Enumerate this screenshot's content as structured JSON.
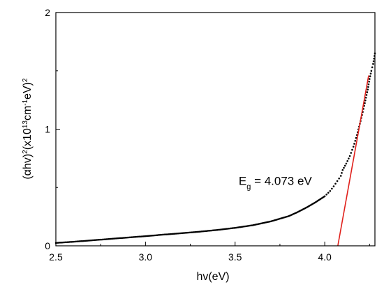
{
  "chart_data": {
    "type": "scatter",
    "title": "",
    "xlabel": "hv(eV)",
    "ylabel": {
      "parts": [
        "(",
        "α",
        "hv)",
        "2",
        "(x10",
        "13",
        "cm",
        "-1",
        "eV)",
        "2"
      ]
    },
    "xlim": [
      2.5,
      4.28
    ],
    "ylim": [
      0,
      2
    ],
    "xticks": [
      "2.5",
      "3.0",
      "3.5",
      "4.0"
    ],
    "xtick_values": [
      2.5,
      3.0,
      3.5,
      4.0
    ],
    "yticks": [
      "0",
      "1",
      "2"
    ],
    "ytick_values": [
      0,
      1,
      2
    ],
    "grid": false,
    "colors": {
      "data": "#000000",
      "fit": "#e0201b",
      "axis": "#000000"
    },
    "series": [
      {
        "marker": "dot",
        "points": [
          [
            2.5,
            0.025
          ],
          [
            2.6,
            0.035
          ],
          [
            2.7,
            0.047
          ],
          [
            2.8,
            0.059
          ],
          [
            2.9,
            0.071
          ],
          [
            3.0,
            0.083
          ],
          [
            3.1,
            0.096
          ],
          [
            3.2,
            0.108
          ],
          [
            3.3,
            0.121
          ],
          [
            3.4,
            0.136
          ],
          [
            3.5,
            0.154
          ],
          [
            3.6,
            0.177
          ],
          [
            3.7,
            0.21
          ],
          [
            3.8,
            0.255
          ],
          [
            3.85,
            0.29
          ],
          [
            3.9,
            0.33
          ],
          [
            3.95,
            0.375
          ],
          [
            4.0,
            0.425
          ],
          [
            4.03,
            0.47
          ],
          [
            4.05,
            0.51
          ],
          [
            4.07,
            0.555
          ],
          [
            4.09,
            0.6
          ],
          [
            4.1,
            0.65
          ],
          [
            4.12,
            0.705
          ],
          [
            4.14,
            0.77
          ],
          [
            4.16,
            0.85
          ],
          [
            4.18,
            0.95
          ],
          [
            4.2,
            1.07
          ],
          [
            4.22,
            1.2
          ],
          [
            4.24,
            1.34
          ],
          [
            4.25,
            1.43
          ],
          [
            4.26,
            1.5
          ],
          [
            4.27,
            1.56
          ],
          [
            4.28,
            1.65
          ]
        ]
      }
    ],
    "fit_line": {
      "x": [
        4.073,
        4.245
      ],
      "y": [
        0,
        1.46
      ]
    },
    "annotation": {
      "text_main": "E",
      "text_sub": "g",
      "text_rest": " = 4.073 eV",
      "x": 3.52,
      "y": 0.57
    }
  }
}
